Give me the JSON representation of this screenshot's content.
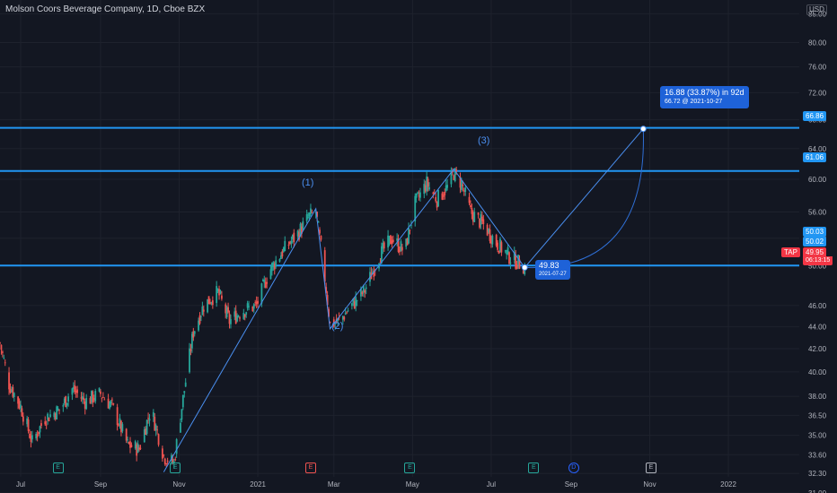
{
  "header": {
    "title": "Molson Coors Beverage Company, 1D, Cboe BZX",
    "currency": "USD"
  },
  "colors": {
    "background": "#131722",
    "bull": "#26a69a",
    "bear": "#ef5350",
    "level_line": "#2196f3",
    "annotation": "#1e62d8",
    "current_price": "#f23645"
  },
  "chart_data": {
    "type": "candlestick",
    "x_axis": {
      "ticks": [
        "Jul",
        "Sep",
        "Nov",
        "2021",
        "Mar",
        "May",
        "Jul",
        "Sep",
        "Nov",
        "2022"
      ],
      "range": [
        "2020-06-15",
        "2022-02-25"
      ]
    },
    "y_axis": {
      "scale": "log",
      "range": [
        31.0,
        87.5
      ],
      "ticks": [
        "85.00",
        "80.00",
        "76.00",
        "72.00",
        "68.00",
        "64.00",
        "60.00",
        "56.00",
        "53.00",
        "50.00",
        "46.00",
        "44.00",
        "42.00",
        "40.00",
        "38.00",
        "36.50",
        "35.00",
        "33.60",
        "32.30",
        "31.00"
      ]
    },
    "grid": true,
    "horizontal_levels": [
      {
        "price": 66.86,
        "label": "66.86"
      },
      {
        "price": 61.06,
        "label": "61.06"
      },
      {
        "price": 50.03,
        "label": "50.03"
      }
    ],
    "axis_tags": {
      "extra": {
        "label": "50.02"
      },
      "current": {
        "symbol": "TAP",
        "price": "49.95",
        "countdown": "06:13:15"
      }
    },
    "waves": [
      {
        "label": "(1)",
        "date": "2021-02-15",
        "price": 56.4
      },
      {
        "label": "(2)",
        "date": "2021-02-26",
        "price": 43.8
      },
      {
        "label": "(3)",
        "date": "2021-06-02",
        "price": 61.3
      }
    ],
    "wave_path": [
      [
        "2020-10-20",
        32.4
      ],
      [
        "2021-02-15",
        56.4
      ],
      [
        "2021-02-26",
        43.8
      ],
      [
        "2021-06-02",
        61.3
      ],
      [
        "2021-07-27",
        49.83
      ]
    ],
    "projection": {
      "from": {
        "date": "2021-07-27",
        "price": 49.83
      },
      "to": {
        "date": "2021-10-27",
        "price": 66.72
      },
      "label_main": "16.88 (33.87%) in 92d",
      "label_sub": "66.72 @ 2021-10-27",
      "start_label": "49.83",
      "start_date": "2021-07-27"
    },
    "events": [
      {
        "type": "earnings",
        "symbol": "E",
        "date": "2020-07-30"
      },
      {
        "type": "earnings",
        "symbol": "E",
        "date": "2020-10-29"
      },
      {
        "type": "earnings",
        "symbol": "E",
        "date": "2021-02-11"
      },
      {
        "type": "earnings",
        "symbol": "E",
        "date": "2021-04-29"
      },
      {
        "type": "earnings",
        "symbol": "E",
        "date": "2021-08-03"
      },
      {
        "type": "dividend",
        "symbol": "D",
        "date": "2021-09-03"
      },
      {
        "type": "earnings",
        "symbol": "E",
        "date": "2021-11-02"
      }
    ],
    "price_path": [
      [
        "2020-06-15",
        42.5
      ],
      [
        "2020-06-22",
        39.0
      ],
      [
        "2020-07-01",
        37.2
      ],
      [
        "2020-07-10",
        34.5
      ],
      [
        "2020-07-20",
        36.3
      ],
      [
        "2020-08-01",
        37.0
      ],
      [
        "2020-08-10",
        38.6
      ],
      [
        "2020-08-20",
        37.6
      ],
      [
        "2020-09-01",
        38.2
      ],
      [
        "2020-09-10",
        37.2
      ],
      [
        "2020-09-22",
        34.3
      ],
      [
        "2020-10-01",
        34.0
      ],
      [
        "2020-10-10",
        37.0
      ],
      [
        "2020-10-20",
        33.5
      ],
      [
        "2020-10-28",
        33.0
      ],
      [
        "2020-11-05",
        38.5
      ],
      [
        "2020-11-12",
        43.5
      ],
      [
        "2020-11-20",
        46.0
      ],
      [
        "2020-12-01",
        47.3
      ],
      [
        "2020-12-10",
        44.5
      ],
      [
        "2020-12-20",
        45.5
      ],
      [
        "2020-12-31",
        46.0
      ],
      [
        "2021-01-10",
        49.5
      ],
      [
        "2021-01-20",
        51.5
      ],
      [
        "2021-02-01",
        53.5
      ],
      [
        "2021-02-10",
        55.5
      ],
      [
        "2021-02-15",
        56.0
      ],
      [
        "2021-02-20",
        51.0
      ],
      [
        "2021-02-26",
        44.2
      ],
      [
        "2021-03-05",
        44.5
      ],
      [
        "2021-03-15",
        46.0
      ],
      [
        "2021-03-25",
        47.5
      ],
      [
        "2021-04-05",
        51.0
      ],
      [
        "2021-04-15",
        53.0
      ],
      [
        "2021-04-25",
        51.5
      ],
      [
        "2021-05-03",
        57.0
      ],
      [
        "2021-05-12",
        59.5
      ],
      [
        "2021-05-20",
        57.5
      ],
      [
        "2021-05-28",
        59.0
      ],
      [
        "2021-06-02",
        60.8
      ],
      [
        "2021-06-08",
        59.5
      ],
      [
        "2021-06-15",
        56.0
      ],
      [
        "2021-06-25",
        54.5
      ],
      [
        "2021-07-05",
        52.5
      ],
      [
        "2021-07-15",
        51.0
      ],
      [
        "2021-07-27",
        49.9
      ]
    ]
  }
}
